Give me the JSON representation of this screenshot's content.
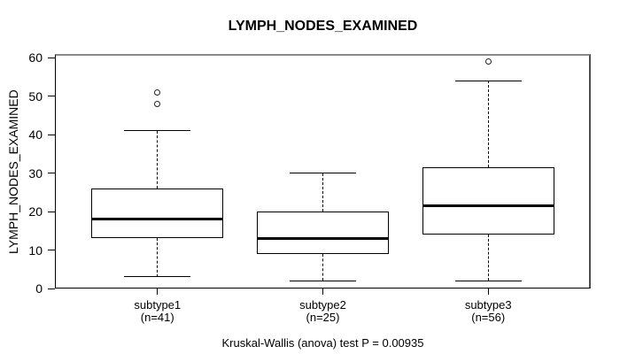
{
  "chart_data": {
    "type": "boxplot",
    "title": "LYMPH_NODES_EXAMINED",
    "ylabel": "LYMPH_NODES_EXAMINED",
    "xlabel": "",
    "caption": "Kruskal-Wallis (anova) test P = 0.00935",
    "ylim": [
      0,
      60
    ],
    "yticks": [
      0,
      10,
      20,
      30,
      40,
      50,
      60
    ],
    "grid": false,
    "legend": null,
    "colors": {
      "line": "#000000",
      "box_fill": "#ffffff",
      "frame_top": "#8a8a8a",
      "background": "#ffffff"
    },
    "groups": [
      {
        "label": "subtype1",
        "count_label": "(n=41)",
        "n": 41,
        "whisker_low": 3,
        "q1": 13,
        "median": 18,
        "q3": 26,
        "whisker_high": 41,
        "outliers": [
          48,
          51
        ]
      },
      {
        "label": "subtype2",
        "count_label": "(n=25)",
        "n": 25,
        "whisker_low": 2,
        "q1": 9,
        "median": 13,
        "q3": 20,
        "whisker_high": 30,
        "outliers": []
      },
      {
        "label": "subtype3",
        "count_label": "(n=56)",
        "n": 56,
        "whisker_low": 2,
        "q1": 14,
        "median": 21.5,
        "q3": 31.5,
        "whisker_high": 54,
        "outliers": [
          59
        ]
      }
    ],
    "stats_test": {
      "name": "Kruskal-Wallis (anova) test",
      "p_value": "0.00935"
    }
  }
}
